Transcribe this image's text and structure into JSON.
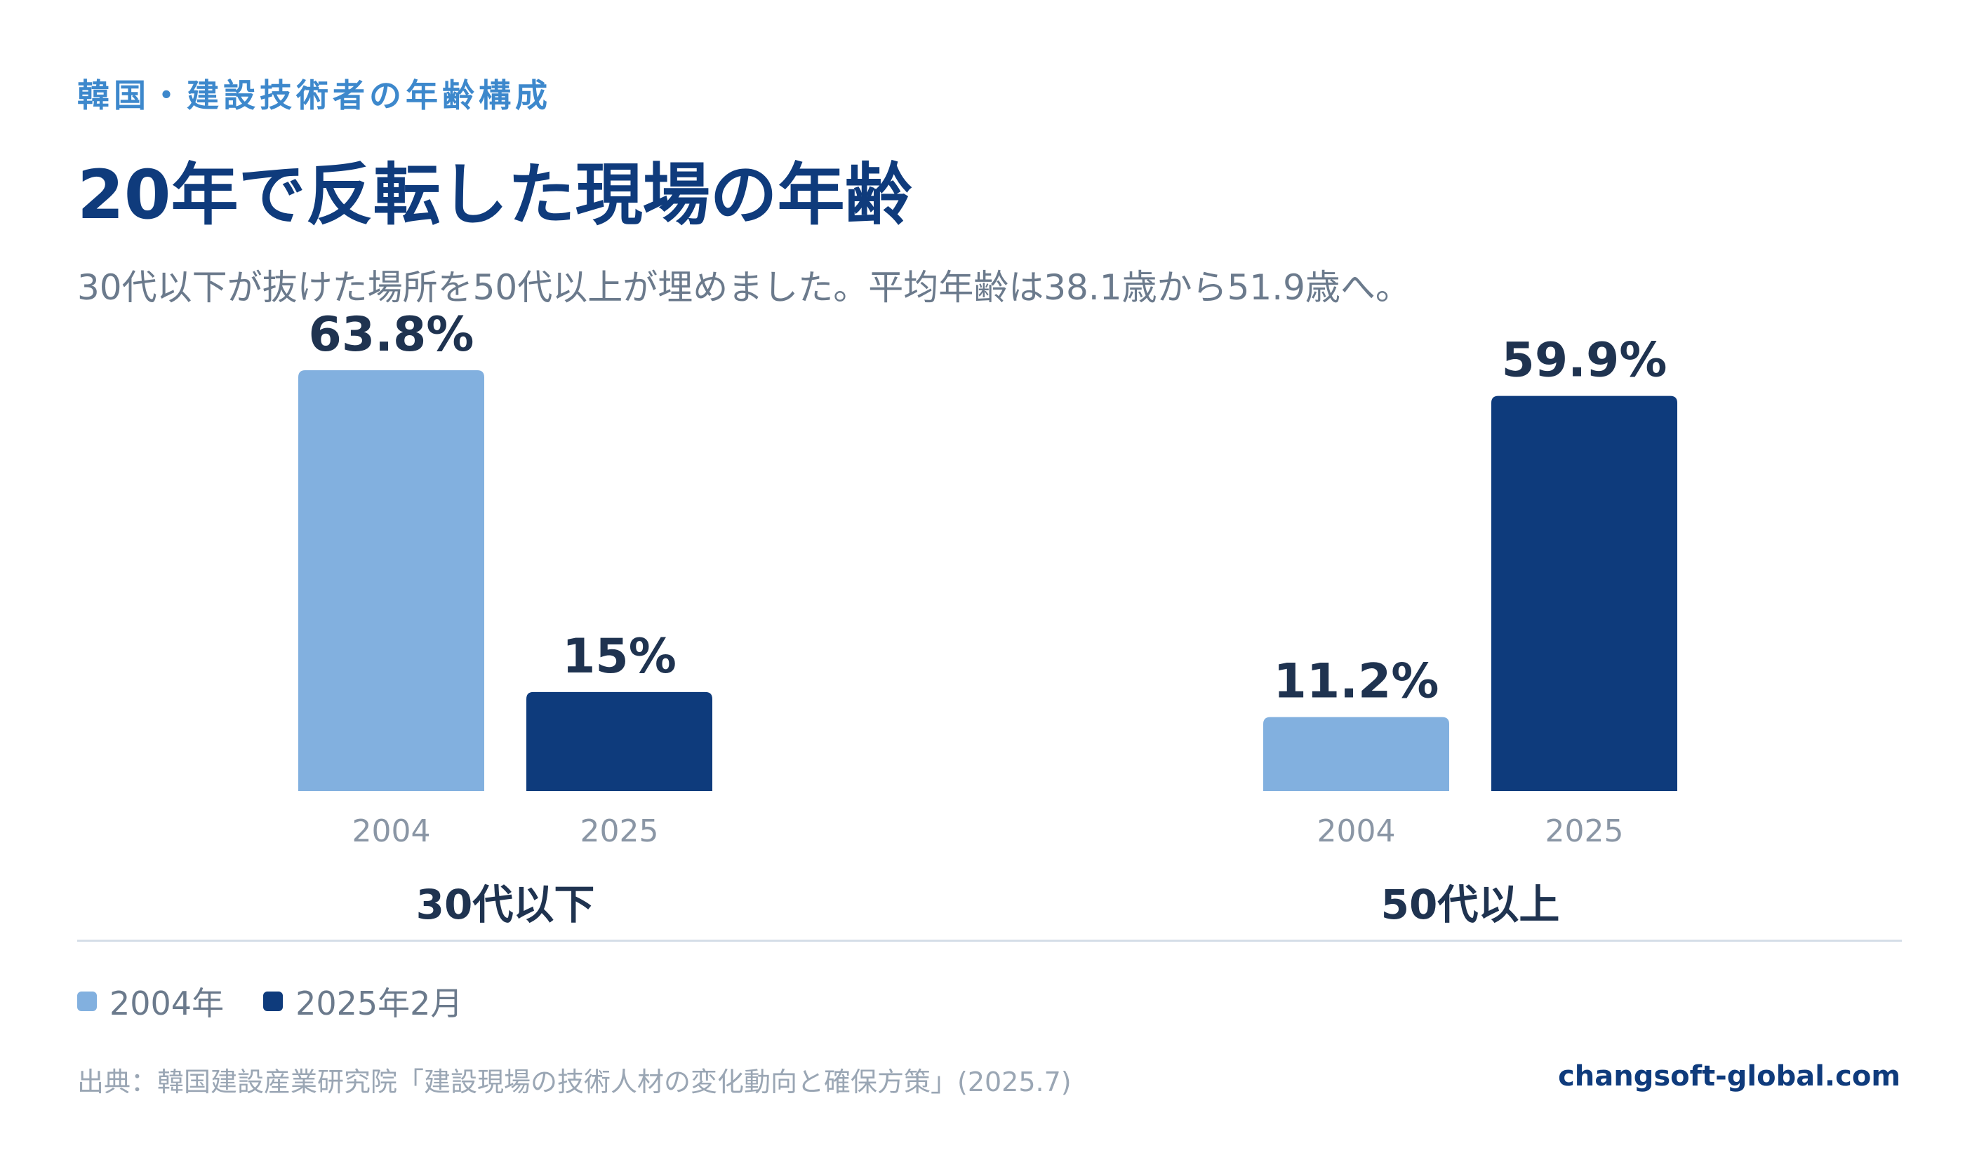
{
  "header": {
    "kicker": "韓国・建設技術者の年齢構成",
    "title": "20年で反転した現場の年齢",
    "subtitle": "30代以下が抜けた場所を50代以上が埋めました。平均年齢は38.1歳から51.9歳へ。"
  },
  "chart_data": {
    "type": "bar",
    "groups": [
      "30代以下",
      "50代以上"
    ],
    "x_labels": [
      "2004",
      "2025"
    ],
    "series": [
      {
        "name": "2004年",
        "values": [
          63.8,
          11.2
        ],
        "labels": [
          "63.8%",
          "11.2%"
        ],
        "color": "#82b0df"
      },
      {
        "name": "2025年2月",
        "values": [
          15,
          59.9
        ],
        "labels": [
          "15%",
          "59.9%"
        ],
        "color": "#0e3b7c"
      }
    ],
    "ylim": [
      0,
      63.8
    ],
    "grid": false,
    "legend": "bottom-left",
    "unit": "%"
  },
  "footer": {
    "source": "出典：韓国建設産業研究院「建設現場の技術人材の変化動向と確保方策」(2025.7)",
    "brand": "changsoft-global.com"
  },
  "colors": {
    "accent": "#3d88cc",
    "title": "#0f3b7c",
    "series_2004": "#82b0df",
    "series_2025": "#0e3b7c",
    "value_label": "#1f3350",
    "muted": "#6b7a8c"
  }
}
